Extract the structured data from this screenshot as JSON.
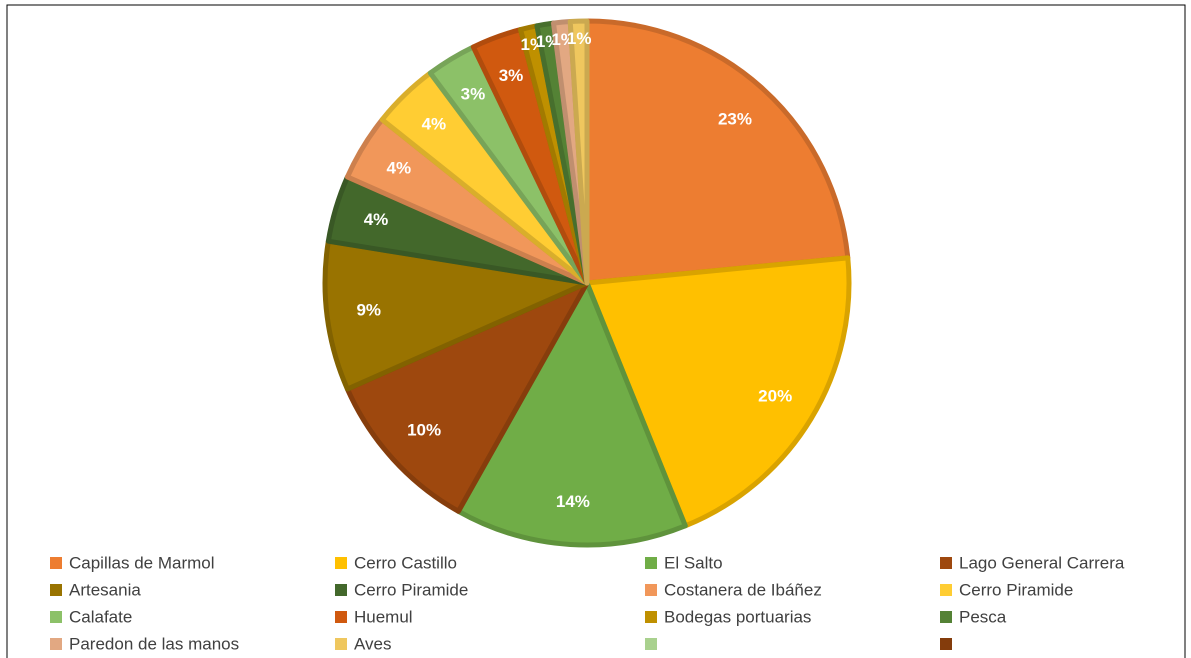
{
  "chart_data": {
    "type": "pie",
    "categories": [
      "Capillas de Marmol",
      "Cerro Castillo",
      "El Salto",
      "Lago General Carrera",
      "Artesania",
      "Cerro Piramide",
      "Costanera de Ibáñez",
      "Cerro Piramide",
      "Calafate",
      "Huemul",
      "Bodegas portuarias",
      "Pesca",
      "Paredon de las manos",
      "Aves",
      null,
      null
    ],
    "values": [
      23,
      20,
      14,
      10,
      9,
      4,
      4,
      4,
      3,
      3,
      1,
      1,
      1,
      1,
      0,
      0
    ],
    "value_labels": [
      "23%",
      "20%",
      "14%",
      "10%",
      "9%",
      "4%",
      "4%",
      "4%",
      "3%",
      "3%",
      "1%",
      "1%",
      "1%",
      "1%",
      null,
      null
    ],
    "colors": [
      "#ED7D31",
      "#FFC000",
      "#70AD47",
      "#9E480E",
      "#997300",
      "#43682B",
      "#F1975A",
      "#FFCD33",
      "#8CC168",
      "#D0590F",
      "#BF9000",
      "#548235",
      "#E2A882",
      "#EFC75E",
      "#A9D18E",
      "#843C0C"
    ]
  }
}
